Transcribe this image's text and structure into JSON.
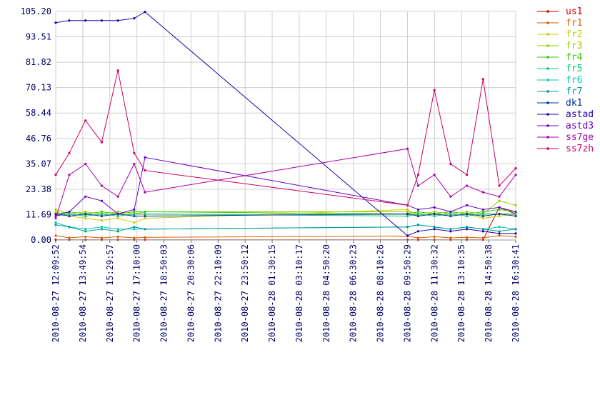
{
  "chart_data": {
    "type": "line",
    "title": "",
    "xlabel": "",
    "ylabel": "",
    "ylim": [
      0,
      105.2
    ],
    "grid": true,
    "legend_position": "right",
    "y_ticks": [
      "0.00",
      "11.69",
      "23.38",
      "35.07",
      "46.76",
      "58.44",
      "70.13",
      "81.82",
      "93.51",
      "105.20"
    ],
    "x_ticks": [
      "2010-08-27 12:09:52",
      "2010-08-27 13:49:54",
      "2010-08-27 15:29:57",
      "2010-08-27 17:10:00",
      "2010-08-27 18:50:03",
      "2010-08-27 20:30:06",
      "2010-08-27 22:10:09",
      "2010-08-27 23:50:12",
      "2010-08-28 01:30:15",
      "2010-08-28 03:10:17",
      "2010-08-28 04:50:20",
      "2010-08-28 06:30:23",
      "2010-08-28 08:10:26",
      "2010-08-28 09:50:29",
      "2010-08-28 11:30:32",
      "2010-08-28 13:10:35",
      "2010-08-28 14:50:38",
      "2010-08-28 16:30:41"
    ],
    "x": [
      "2010-08-27 12:09:52",
      "2010-08-27 13:00",
      "2010-08-27 14:00",
      "2010-08-27 15:00",
      "2010-08-27 16:00",
      "2010-08-27 17:00",
      "2010-08-27 17:40",
      "2010-08-28 09:50:29",
      "2010-08-28 10:30",
      "2010-08-28 11:30",
      "2010-08-28 12:30",
      "2010-08-28 13:30",
      "2010-08-28 14:30",
      "2010-08-28 15:30",
      "2010-08-28 16:30:41"
    ],
    "series": [
      {
        "name": "us1",
        "color": "#cc0000",
        "values": [
          0.1,
          0.1,
          0.1,
          0.1,
          0.1,
          0.1,
          0.1,
          0.1,
          0.1,
          0.1,
          0.1,
          0.1,
          0.1,
          15,
          12
        ]
      },
      {
        "name": "fr1",
        "color": "#cc6600",
        "values": [
          2,
          1,
          1.5,
          1,
          1.5,
          1,
          1.2,
          1.8,
          1,
          1.5,
          1,
          1.2,
          1,
          2,
          1.5
        ]
      },
      {
        "name": "fr2",
        "color": "#cccc00",
        "values": [
          13,
          11,
          10,
          9,
          10,
          8,
          10,
          14,
          11,
          12,
          11,
          12,
          10,
          11,
          12
        ]
      },
      {
        "name": "fr3",
        "color": "#99cc00",
        "values": [
          14,
          12,
          13,
          12,
          13,
          12,
          13,
          13,
          12,
          13,
          12,
          13,
          12,
          18,
          16
        ]
      },
      {
        "name": "fr4",
        "color": "#33cc00",
        "values": [
          12,
          13,
          12,
          13,
          12,
          13,
          13,
          12,
          13,
          12,
          13,
          12,
          13,
          14,
          13
        ]
      },
      {
        "name": "fr5",
        "color": "#00cc66",
        "values": [
          11,
          12,
          11,
          12,
          11,
          12,
          12,
          11,
          12,
          11,
          12,
          11,
          12,
          12,
          12
        ]
      },
      {
        "name": "fr6",
        "color": "#00ccaa",
        "values": [
          8,
          6,
          5,
          6,
          5,
          5,
          5,
          6,
          7,
          6,
          5,
          6,
          5,
          6,
          5
        ]
      },
      {
        "name": "fr7",
        "color": "#009999",
        "values": [
          7,
          6,
          4,
          5,
          4,
          6,
          5,
          6,
          7,
          6,
          5,
          6,
          5,
          4,
          5
        ]
      },
      {
        "name": "dk1",
        "color": "#003399",
        "values": [
          12,
          11,
          12,
          11,
          12,
          11,
          11,
          12,
          11,
          12,
          11,
          12,
          11,
          12,
          11
        ]
      },
      {
        "name": "astad",
        "color": "#2200aa",
        "values": [
          100,
          101,
          101,
          101,
          101,
          102,
          105,
          2,
          4,
          5,
          4,
          5,
          4,
          3,
          3
        ]
      },
      {
        "name": "astd3",
        "color": "#6600cc",
        "values": [
          11,
          13,
          20,
          18,
          12,
          14,
          38,
          16,
          14,
          15,
          13,
          16,
          14,
          15,
          13
        ]
      },
      {
        "name": "ss7ge",
        "color": "#aa00aa",
        "values": [
          10,
          30,
          35,
          25,
          20,
          35,
          22,
          42,
          25,
          30,
          20,
          25,
          22,
          20,
          30
        ]
      },
      {
        "name": "ss7zh",
        "color": "#cc0066",
        "values": [
          30,
          40,
          55,
          45,
          78,
          40,
          32,
          16,
          30,
          69,
          35,
          30,
          74,
          25,
          33
        ]
      }
    ]
  }
}
